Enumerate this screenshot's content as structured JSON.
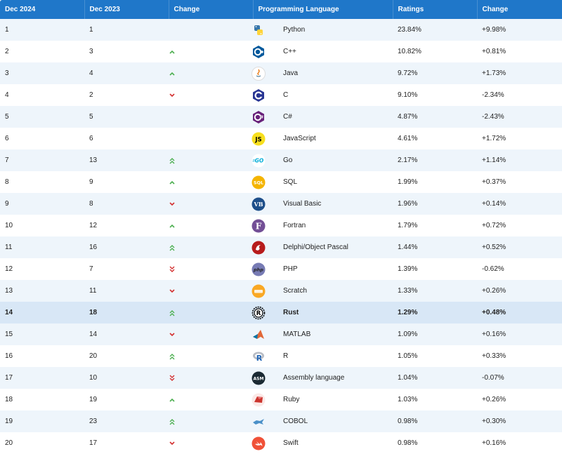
{
  "headers": {
    "dec2024": "Dec 2024",
    "dec2023": "Dec 2023",
    "change": "Change",
    "language": "Programming Language",
    "ratings": "Ratings",
    "change_pct": "Change"
  },
  "colors": {
    "header_bg": "#1f77c9",
    "up": "#4caf50",
    "down": "#d32f2f",
    "highlight_row": "#d8e7f6"
  },
  "rows": [
    {
      "dec2024": "1",
      "dec2023": "1",
      "trend": "same",
      "icon": "python-icon",
      "language": "Python",
      "rating": "23.84%",
      "change": "+9.98%"
    },
    {
      "dec2024": "2",
      "dec2023": "3",
      "trend": "up",
      "icon": "cplusplus-icon",
      "language": "C++",
      "rating": "10.82%",
      "change": "+0.81%"
    },
    {
      "dec2024": "3",
      "dec2023": "4",
      "trend": "up",
      "icon": "java-icon",
      "language": "Java",
      "rating": "9.72%",
      "change": "+1.73%"
    },
    {
      "dec2024": "4",
      "dec2023": "2",
      "trend": "down",
      "icon": "c-icon",
      "language": "C",
      "rating": "9.10%",
      "change": "-2.34%"
    },
    {
      "dec2024": "5",
      "dec2023": "5",
      "trend": "same",
      "icon": "csharp-icon",
      "language": "C#",
      "rating": "4.87%",
      "change": "-2.43%"
    },
    {
      "dec2024": "6",
      "dec2023": "6",
      "trend": "same",
      "icon": "javascript-icon",
      "language": "JavaScript",
      "rating": "4.61%",
      "change": "+1.72%"
    },
    {
      "dec2024": "7",
      "dec2023": "13",
      "trend": "up2",
      "icon": "go-icon",
      "language": "Go",
      "rating": "2.17%",
      "change": "+1.14%"
    },
    {
      "dec2024": "8",
      "dec2023": "9",
      "trend": "up",
      "icon": "sql-icon",
      "language": "SQL",
      "rating": "1.99%",
      "change": "+0.37%"
    },
    {
      "dec2024": "9",
      "dec2023": "8",
      "trend": "down",
      "icon": "visual-basic-icon",
      "language": "Visual Basic",
      "rating": "1.96%",
      "change": "+0.14%"
    },
    {
      "dec2024": "10",
      "dec2023": "12",
      "trend": "up",
      "icon": "fortran-icon",
      "language": "Fortran",
      "rating": "1.79%",
      "change": "+0.72%"
    },
    {
      "dec2024": "11",
      "dec2023": "16",
      "trend": "up2",
      "icon": "delphi-icon",
      "language": "Delphi/Object Pascal",
      "rating": "1.44%",
      "change": "+0.52%"
    },
    {
      "dec2024": "12",
      "dec2023": "7",
      "trend": "down2",
      "icon": "php-icon",
      "language": "PHP",
      "rating": "1.39%",
      "change": "-0.62%"
    },
    {
      "dec2024": "13",
      "dec2023": "11",
      "trend": "down",
      "icon": "scratch-icon",
      "language": "Scratch",
      "rating": "1.33%",
      "change": "+0.26%"
    },
    {
      "dec2024": "14",
      "dec2023": "18",
      "trend": "up2",
      "icon": "rust-icon",
      "language": "Rust",
      "rating": "1.29%",
      "change": "+0.48%",
      "highlight": true
    },
    {
      "dec2024": "15",
      "dec2023": "14",
      "trend": "down",
      "icon": "matlab-icon",
      "language": "MATLAB",
      "rating": "1.09%",
      "change": "+0.16%"
    },
    {
      "dec2024": "16",
      "dec2023": "20",
      "trend": "up2",
      "icon": "r-icon",
      "language": "R",
      "rating": "1.05%",
      "change": "+0.33%"
    },
    {
      "dec2024": "17",
      "dec2023": "10",
      "trend": "down2",
      "icon": "assembly-icon",
      "language": "Assembly language",
      "rating": "1.04%",
      "change": "-0.07%"
    },
    {
      "dec2024": "18",
      "dec2023": "19",
      "trend": "up",
      "icon": "ruby-icon",
      "language": "Ruby",
      "rating": "1.03%",
      "change": "+0.26%"
    },
    {
      "dec2024": "19",
      "dec2023": "23",
      "trend": "up2",
      "icon": "cobol-icon",
      "language": "COBOL",
      "rating": "0.98%",
      "change": "+0.30%"
    },
    {
      "dec2024": "20",
      "dec2023": "17",
      "trend": "down",
      "icon": "swift-icon",
      "language": "Swift",
      "rating": "0.98%",
      "change": "+0.16%"
    }
  ]
}
